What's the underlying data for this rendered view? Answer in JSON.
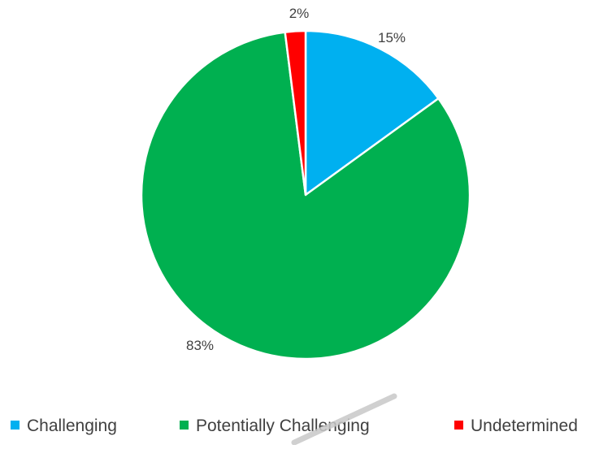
{
  "chart_data": {
    "type": "pie",
    "title": "",
    "start_angle_deg": 0,
    "direction": "clockwise",
    "legend_position": "bottom",
    "slices": [
      {
        "label": "Challenging",
        "value": 15,
        "display": "15%",
        "color": "#00B0F0"
      },
      {
        "label": "Potentially Challenging",
        "value": 83,
        "display": "83%",
        "color": "#00B050"
      },
      {
        "label": "Undetermined",
        "value": 2,
        "display": "2%",
        "color": "#FF0000"
      }
    ]
  }
}
